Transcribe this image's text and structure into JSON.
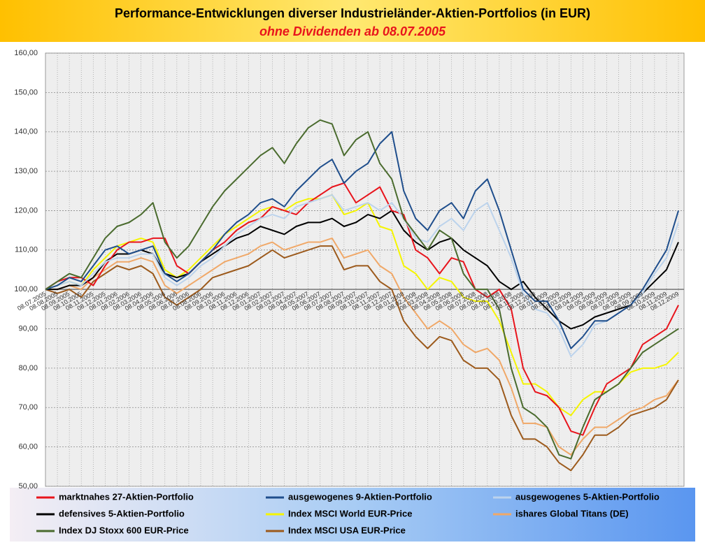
{
  "chart_data": {
    "type": "line",
    "title": "Performance-Entwicklungen diverser Industrieländer-Aktien-Portfolios (in EUR)",
    "subtitle": "ohne Dividenden ab 08.07.2005",
    "categories": [
      "08.07.2005",
      "08.08.2005",
      "08.09.2005",
      "08.10.2005",
      "08.11.2005",
      "08.12.2005",
      "08.01.2006",
      "08.02.2006",
      "08.03.2006",
      "08.04.2006",
      "08.05.2006",
      "08.06.2006",
      "08.07.2006",
      "08.08.2006",
      "08.09.2006",
      "08.10.2006",
      "08.11.2006",
      "08.12.2006",
      "08.01.2007",
      "08.02.2007",
      "08.03.2007",
      "08.04.2007",
      "08.05.2007",
      "08.06.2007",
      "08.07.2007",
      "08.08.2007",
      "08.09.2007",
      "08.10.2007",
      "08.11.2007",
      "08.12.2007",
      "08.01.2008",
      "08.02.2008",
      "08.03.2008",
      "08.04.2008",
      "08.05.2008",
      "08.06.2008",
      "08.07.2008",
      "08.08.2008",
      "08.09.2008",
      "08.10.2008",
      "08.11.2008",
      "08.12.2008",
      "08.01.2009",
      "08.02.2009",
      "08.03.2009",
      "08.04.2009",
      "08.05.2009",
      "08.06.2009",
      "08.07.2009",
      "08.08.2009",
      "08.09.2009",
      "08.10.2009",
      "08.11.2009",
      "08.12.2009"
    ],
    "series": [
      {
        "name": "marktnahes 27-Aktien-Portfolio",
        "color": "#e8141c",
        "values": [
          100,
          102,
          103,
          103,
          101,
          106,
          110,
          112,
          112,
          113,
          113,
          106,
          104,
          107,
          110,
          112,
          115,
          117,
          118,
          121,
          120,
          119,
          122,
          124,
          126,
          127,
          122,
          124,
          126,
          120,
          119,
          110,
          108,
          104,
          108,
          107,
          100,
          98,
          100,
          95,
          80,
          74,
          73,
          70,
          64,
          63,
          70,
          76,
          78,
          80,
          86,
          88,
          90,
          96
        ]
      },
      {
        "name": "ausgewogenes 9-Aktien-Portfolio",
        "color": "#1f4e8c",
        "values": [
          100,
          101,
          103,
          102,
          106,
          110,
          111,
          109,
          110,
          111,
          104,
          102,
          104,
          107,
          110,
          114,
          117,
          119,
          122,
          123,
          121,
          125,
          128,
          131,
          133,
          127,
          130,
          132,
          137,
          140,
          125,
          118,
          115,
          120,
          122,
          118,
          125,
          128,
          120,
          110,
          100,
          97,
          97,
          92,
          85,
          88,
          92,
          92,
          94,
          96,
          100,
          105,
          110,
          120
        ]
      },
      {
        "name": "ausgewogenes 5-Aktien-Portfolio",
        "color": "#bcd3ec",
        "values": [
          100,
          101,
          102,
          101,
          104,
          107,
          108,
          108,
          109,
          109,
          103,
          101,
          103,
          106,
          108,
          111,
          114,
          116,
          118,
          119,
          118,
          121,
          122,
          123,
          124,
          120,
          121,
          122,
          120,
          122,
          118,
          113,
          112,
          116,
          118,
          115,
          120,
          122,
          115,
          108,
          99,
          95,
          94,
          90,
          83,
          86,
          91,
          92,
          94,
          96,
          99,
          104,
          108,
          117
        ]
      },
      {
        "name": "defensives 5-Aktien-Portfolio",
        "color": "#000000",
        "values": [
          100,
          100,
          101,
          101,
          103,
          107,
          109,
          109,
          110,
          109,
          104,
          103,
          104,
          107,
          109,
          111,
          113,
          114,
          116,
          115,
          114,
          116,
          117,
          117,
          118,
          116,
          117,
          119,
          118,
          120,
          115,
          112,
          110,
          112,
          113,
          110,
          108,
          106,
          102,
          100,
          102,
          98,
          95,
          92,
          90,
          91,
          93,
          94,
          95,
          96,
          99,
          102,
          105,
          112
        ]
      },
      {
        "name": "Index MSCI World EUR-Price",
        "color": "#f5f500",
        "values": [
          100,
          101,
          102,
          101,
          105,
          108,
          111,
          112,
          113,
          112,
          105,
          103,
          105,
          108,
          111,
          114,
          116,
          118,
          120,
          121,
          120,
          122,
          123,
          123,
          124,
          119,
          120,
          122,
          116,
          115,
          106,
          104,
          100,
          103,
          102,
          98,
          97,
          97,
          92,
          84,
          76,
          76,
          74,
          70,
          68,
          72,
          74,
          74,
          76,
          79,
          80,
          80,
          81,
          84
        ]
      },
      {
        "name": "ishares Global Titans (DE)",
        "color": "#f0a868",
        "values": [
          100,
          100,
          101,
          100,
          103,
          105,
          107,
          107,
          108,
          107,
          101,
          99,
          101,
          103,
          105,
          107,
          108,
          109,
          111,
          112,
          110,
          111,
          112,
          112,
          113,
          108,
          109,
          110,
          106,
          104,
          98,
          94,
          90,
          92,
          90,
          86,
          84,
          85,
          82,
          75,
          66,
          66,
          65,
          60,
          58,
          62,
          65,
          65,
          67,
          69,
          70,
          72,
          73,
          77
        ]
      },
      {
        "name": "Index DJ Stoxx 600 EUR-Price",
        "color": "#4a6b2e",
        "values": [
          100,
          102,
          104,
          103,
          108,
          113,
          116,
          117,
          119,
          122,
          112,
          108,
          111,
          116,
          121,
          125,
          128,
          131,
          134,
          136,
          132,
          137,
          141,
          143,
          142,
          134,
          138,
          140,
          132,
          128,
          118,
          114,
          110,
          115,
          113,
          104,
          100,
          100,
          95,
          80,
          70,
          68,
          65,
          58,
          57,
          65,
          72,
          74,
          76,
          80,
          84,
          86,
          88,
          90
        ]
      },
      {
        "name": "Index MSCI USA EUR-Price",
        "color": "#9c5a1c",
        "values": [
          100,
          99,
          100,
          98,
          102,
          104,
          106,
          105,
          106,
          104,
          98,
          96,
          98,
          100,
          103,
          104,
          105,
          106,
          108,
          110,
          108,
          109,
          110,
          111,
          111,
          105,
          106,
          106,
          102,
          100,
          92,
          88,
          85,
          88,
          87,
          82,
          80,
          80,
          77,
          68,
          62,
          62,
          60,
          56,
          54,
          58,
          63,
          63,
          65,
          68,
          69,
          70,
          72,
          77
        ]
      }
    ],
    "ylim": [
      50,
      160
    ],
    "yticks": [
      {
        "value": 50,
        "label": "50,00"
      },
      {
        "value": 60,
        "label": "60,00"
      },
      {
        "value": 70,
        "label": "70,00"
      },
      {
        "value": 80,
        "label": "80,00"
      },
      {
        "value": 90,
        "label": "90,00"
      },
      {
        "value": 100,
        "label": "100,00"
      },
      {
        "value": 110,
        "label": "110,00"
      },
      {
        "value": 120,
        "label": "120,00"
      },
      {
        "value": 130,
        "label": "130,00"
      },
      {
        "value": 140,
        "label": "140,00"
      },
      {
        "value": 150,
        "label": "150,00"
      },
      {
        "value": 160,
        "label": "160,00"
      }
    ],
    "xaxis_crosses": 100,
    "grid": true
  }
}
